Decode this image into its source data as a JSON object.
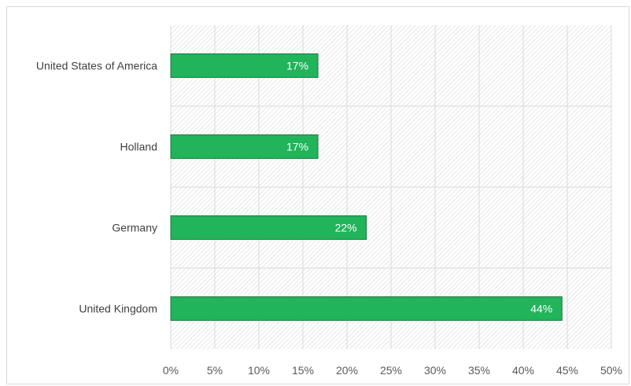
{
  "chart_data": {
    "type": "bar",
    "orientation": "horizontal",
    "categories": [
      "United States of America",
      "Holland",
      "Germany",
      "United Kingdom"
    ],
    "values": [
      16.7,
      16.7,
      22.2,
      44.4
    ],
    "data_labels": [
      "17%",
      "17%",
      "22%",
      "44%"
    ],
    "x_ticks": [
      "0%",
      "5%",
      "10%",
      "15%",
      "20%",
      "25%",
      "30%",
      "35%",
      "40%",
      "45%",
      "50%"
    ],
    "xlim": [
      0,
      50
    ],
    "title": "",
    "xlabel": "",
    "ylabel": "",
    "grid": true,
    "legend": "none",
    "colors": {
      "bar_fill": "#21b45a",
      "bar_stroke": "#1a7a3e",
      "hatch": "#d0d0d0",
      "grid": "#d9d9d9"
    }
  }
}
